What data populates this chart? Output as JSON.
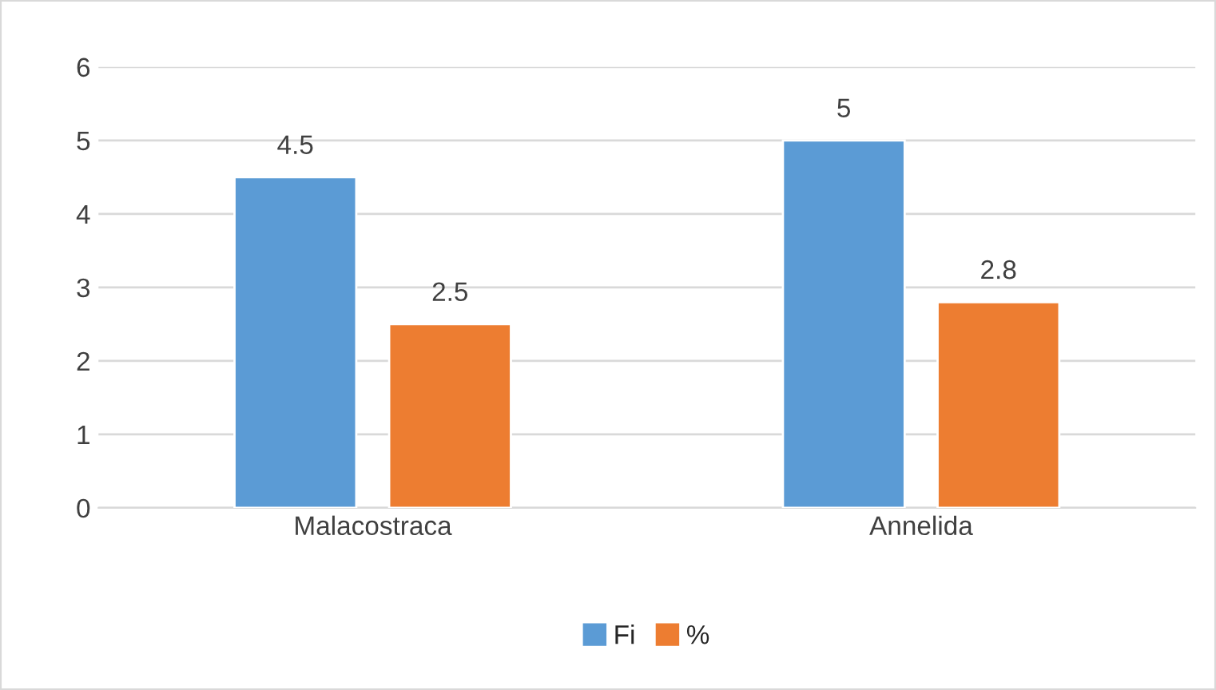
{
  "chart_data": {
    "type": "bar",
    "categories": [
      "Malacostraca",
      "Annelida"
    ],
    "series": [
      {
        "name": "Fi",
        "color": "#5b9bd5",
        "values": [
          4.5,
          5
        ]
      },
      {
        "name": "%",
        "color": "#ed7d31",
        "values": [
          2.5,
          2.8
        ]
      }
    ],
    "ylim": [
      0,
      6
    ],
    "yticks": [
      0,
      1,
      2,
      3,
      4,
      5,
      6
    ],
    "grid": "y",
    "legend": "bottom",
    "data_labels": true
  }
}
